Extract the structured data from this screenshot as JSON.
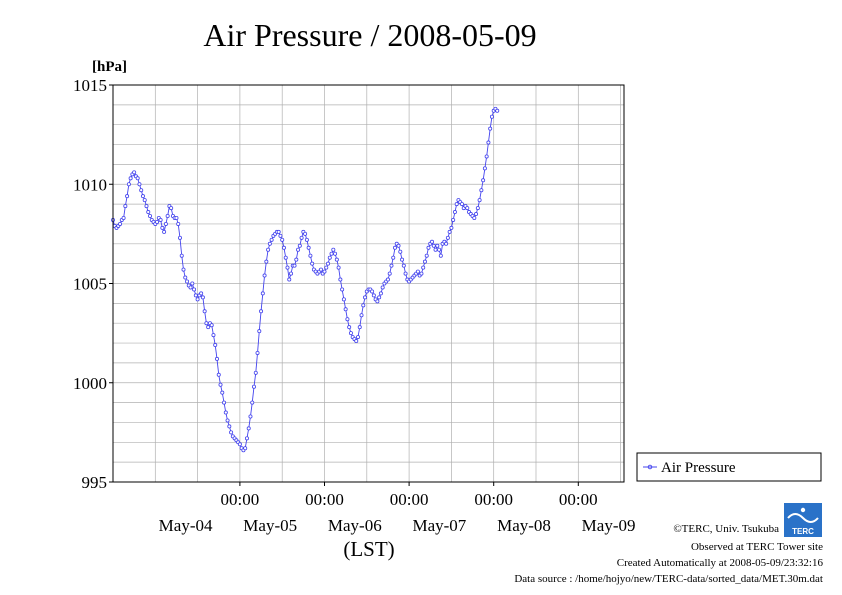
{
  "chart_data": {
    "type": "line",
    "title": "Air Pressure / 2008-05-09",
    "ylabel": "[hPa]",
    "xlabel": "(LST)",
    "ylim": [
      995,
      1015
    ],
    "y_ticks": [
      995,
      1000,
      1005,
      1010,
      1015
    ],
    "x_tick_time_label": "00:00",
    "x_day_labels": [
      "May-04",
      "May-05",
      "May-06",
      "May-07",
      "May-08",
      "May-09"
    ],
    "grid": true,
    "legend_position": "right",
    "colors": {
      "series": "#4444ee",
      "grid": "#b0b0b0"
    },
    "x_unit": "hours since 2008-05-04 00:00 LST",
    "x_start": -12,
    "x_step": 0.5,
    "series": [
      {
        "name": "Air Pressure",
        "values": [
          1008.2,
          1007.9,
          1007.8,
          1007.9,
          1008.0,
          1008.2,
          1008.3,
          1008.9,
          1009.4,
          1010.0,
          1010.3,
          1010.5,
          1010.6,
          1010.4,
          1010.3,
          1010.0,
          1009.7,
          1009.4,
          1009.2,
          1008.9,
          1008.6,
          1008.4,
          1008.2,
          1008.1,
          1008.0,
          1008.1,
          1008.3,
          1008.2,
          1007.8,
          1007.6,
          1008.0,
          1008.4,
          1008.9,
          1008.8,
          1008.4,
          1008.3,
          1008.3,
          1008.0,
          1007.3,
          1006.4,
          1005.7,
          1005.3,
          1005.1,
          1004.9,
          1004.8,
          1005.0,
          1004.7,
          1004.4,
          1004.2,
          1004.4,
          1004.5,
          1004.3,
          1003.6,
          1003.0,
          1002.8,
          1003.0,
          1002.9,
          1002.4,
          1001.9,
          1001.2,
          1000.4,
          999.9,
          999.5,
          999.0,
          998.5,
          998.1,
          997.8,
          997.5,
          997.3,
          997.2,
          997.1,
          997.0,
          996.9,
          996.7,
          996.6,
          996.7,
          997.2,
          997.7,
          998.3,
          999.0,
          999.8,
          1000.5,
          1001.5,
          1002.6,
          1003.6,
          1004.5,
          1005.4,
          1006.1,
          1006.7,
          1007.0,
          1007.2,
          1007.4,
          1007.5,
          1007.6,
          1007.6,
          1007.4,
          1007.2,
          1006.8,
          1006.3,
          1005.8,
          1005.2,
          1005.5,
          1005.9,
          1005.9,
          1006.2,
          1006.7,
          1006.9,
          1007.3,
          1007.6,
          1007.5,
          1007.2,
          1006.8,
          1006.4,
          1006.0,
          1005.7,
          1005.6,
          1005.5,
          1005.6,
          1005.7,
          1005.5,
          1005.6,
          1005.8,
          1006.0,
          1006.3,
          1006.5,
          1006.7,
          1006.5,
          1006.2,
          1005.8,
          1005.2,
          1004.7,
          1004.2,
          1003.7,
          1003.2,
          1002.8,
          1002.5,
          1002.3,
          1002.2,
          1002.1,
          1002.3,
          1002.8,
          1003.4,
          1003.9,
          1004.3,
          1004.6,
          1004.7,
          1004.7,
          1004.6,
          1004.4,
          1004.2,
          1004.1,
          1004.3,
          1004.5,
          1004.8,
          1005.0,
          1005.1,
          1005.2,
          1005.5,
          1005.9,
          1006.3,
          1006.8,
          1007.0,
          1006.9,
          1006.6,
          1006.2,
          1005.9,
          1005.5,
          1005.2,
          1005.1,
          1005.2,
          1005.3,
          1005.4,
          1005.5,
          1005.6,
          1005.4,
          1005.5,
          1005.8,
          1006.1,
          1006.4,
          1006.8,
          1007.0,
          1007.1,
          1006.9,
          1006.7,
          1006.9,
          1006.7,
          1006.4,
          1007.0,
          1007.1,
          1007.0,
          1007.3,
          1007.6,
          1007.8,
          1008.2,
          1008.6,
          1009.0,
          1009.2,
          1009.1,
          1009.0,
          1008.8,
          1008.9,
          1008.8,
          1008.6,
          1008.5,
          1008.4,
          1008.3,
          1008.5,
          1008.8,
          1009.2,
          1009.7,
          1010.2,
          1010.8,
          1011.4,
          1012.1,
          1012.8,
          1013.4,
          1013.7,
          1013.8,
          1013.7
        ]
      }
    ]
  },
  "footer": {
    "copyright": "©TERC, Univ. Tsukuba",
    "observed": "Observed at TERC Tower site",
    "created": "Created Automatically at 2008-05-09/23:32:16",
    "source": "Data source : /home/hojyo/new/TERC-data/sorted_data/MET.30m.dat"
  },
  "logo": {
    "text": "TERC",
    "icon": "terc-logo-icon",
    "color": "#2a72c8"
  }
}
